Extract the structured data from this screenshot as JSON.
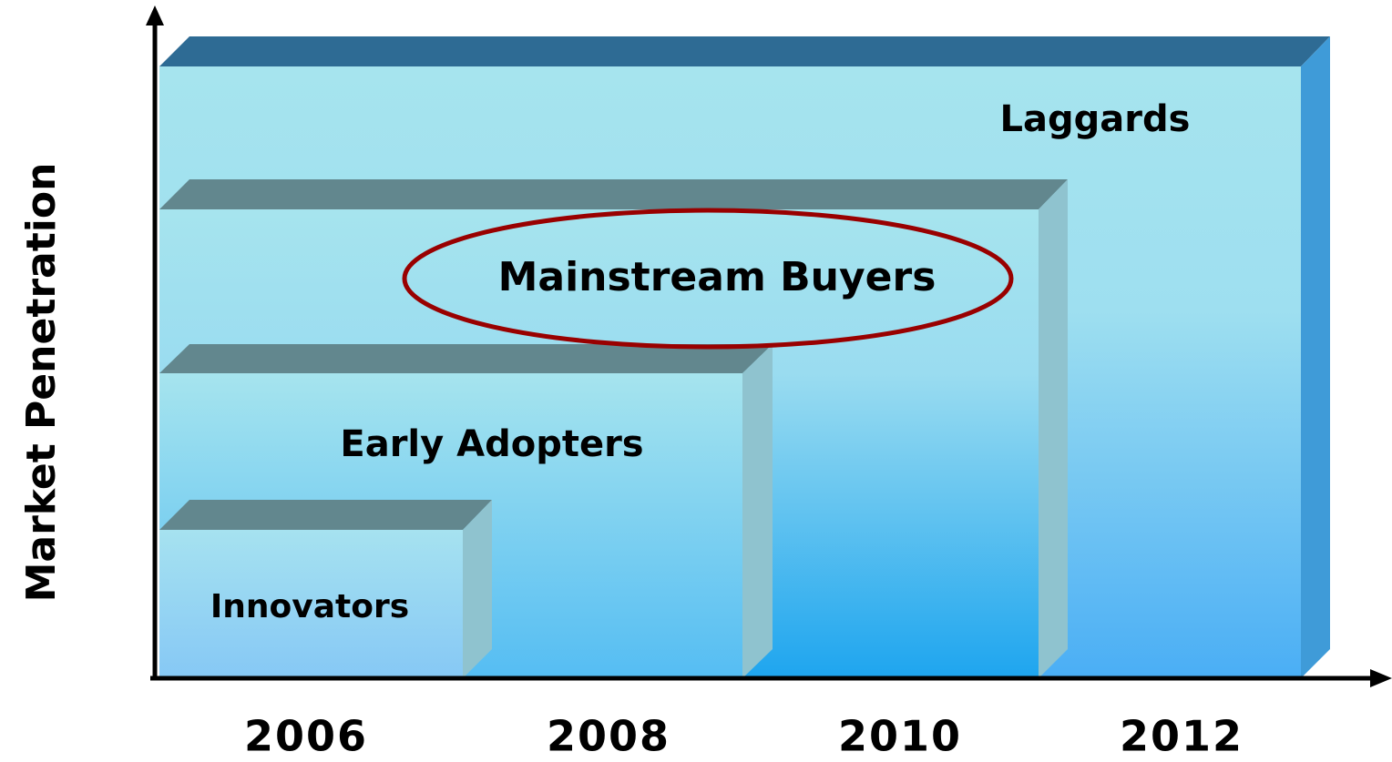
{
  "axis_label": "Market Penetration",
  "segments": [
    {
      "label": "Laggards"
    },
    {
      "label": "Mainstream Buyers"
    },
    {
      "label": "Early Adopters"
    },
    {
      "label": "Innovators"
    }
  ],
  "years": [
    "2006",
    "2008",
    "2010",
    "2012"
  ]
}
